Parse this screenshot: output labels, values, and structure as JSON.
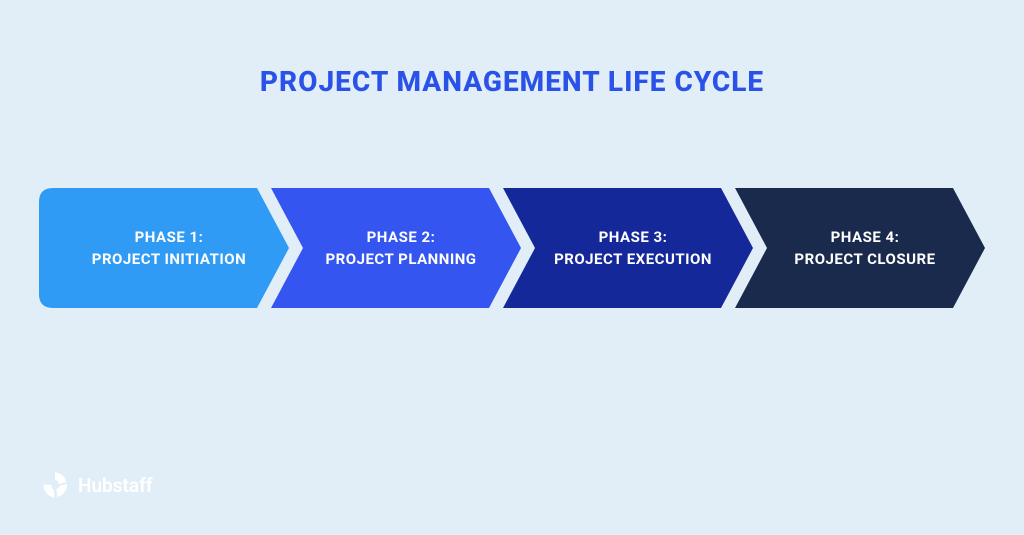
{
  "diagram": {
    "type": "process-arrows",
    "background_color": "#e1eef8",
    "title": {
      "text": "PROJECT MANAGEMENT LIFE CYCLE",
      "color": "#2a52e9",
      "fontsize": 28,
      "fontweight": 800
    },
    "arrows": {
      "count": 4,
      "item_width": 250,
      "item_height": 120,
      "overlap": 18,
      "notch_depth": 32,
      "label_color": "#ffffff",
      "label_fontsize": 15,
      "items": [
        {
          "line1": "PHASE 1:",
          "line2": "PROJECT INITIATION",
          "fill": "#2f9bf4",
          "first": true
        },
        {
          "line1": "PHASE 2:",
          "line2": "PROJECT PLANNING",
          "fill": "#3455f0",
          "first": false
        },
        {
          "line1": "PHASE 3:",
          "line2": "PROJECT EXECUTION",
          "fill": "#14289a",
          "first": false
        },
        {
          "line1": "PHASE 4:",
          "line2": "PROJECT CLOSURE",
          "fill": "#1a2a4d",
          "first": false
        }
      ]
    },
    "logo": {
      "text": "Hubstaff",
      "text_color": "#ffffff",
      "mark_color": "#ffffff",
      "mark_size": 30
    }
  }
}
